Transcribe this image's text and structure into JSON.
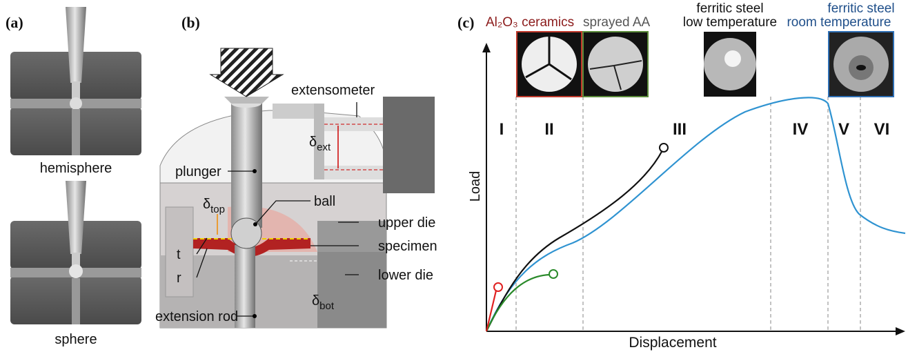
{
  "panel_a": {
    "label": "(a)",
    "top_caption": "hemisphere",
    "bottom_caption": "sphere"
  },
  "panel_b": {
    "label": "(b)",
    "extensometer": "extensometer",
    "delta_ext": {
      "symbol": "δ",
      "subscript": "ext"
    },
    "plunger": "plunger",
    "delta_top": {
      "symbol": "δ",
      "subscript": "top"
    },
    "ball": "ball",
    "upper_die": "upper die",
    "t": "t",
    "specimen": "specimen",
    "r": "r",
    "lower_die": "lower die",
    "delta_bot": {
      "symbol": "δ",
      "subscript": "bot"
    },
    "extension_rod": "extension rod"
  },
  "panel_c": {
    "label": "(c)",
    "materials": [
      "Al₂O₃ ceramics",
      "sprayed AA"
    ],
    "ferritic_low": [
      "ferritic steel",
      "low temperature"
    ],
    "ferritic_room": [
      "ferritic steel",
      "room temperature"
    ],
    "stages": [
      "I",
      "II",
      "III",
      "IV",
      "V",
      "VI"
    ],
    "y_label": "Load",
    "x_label": "Displacement"
  }
}
